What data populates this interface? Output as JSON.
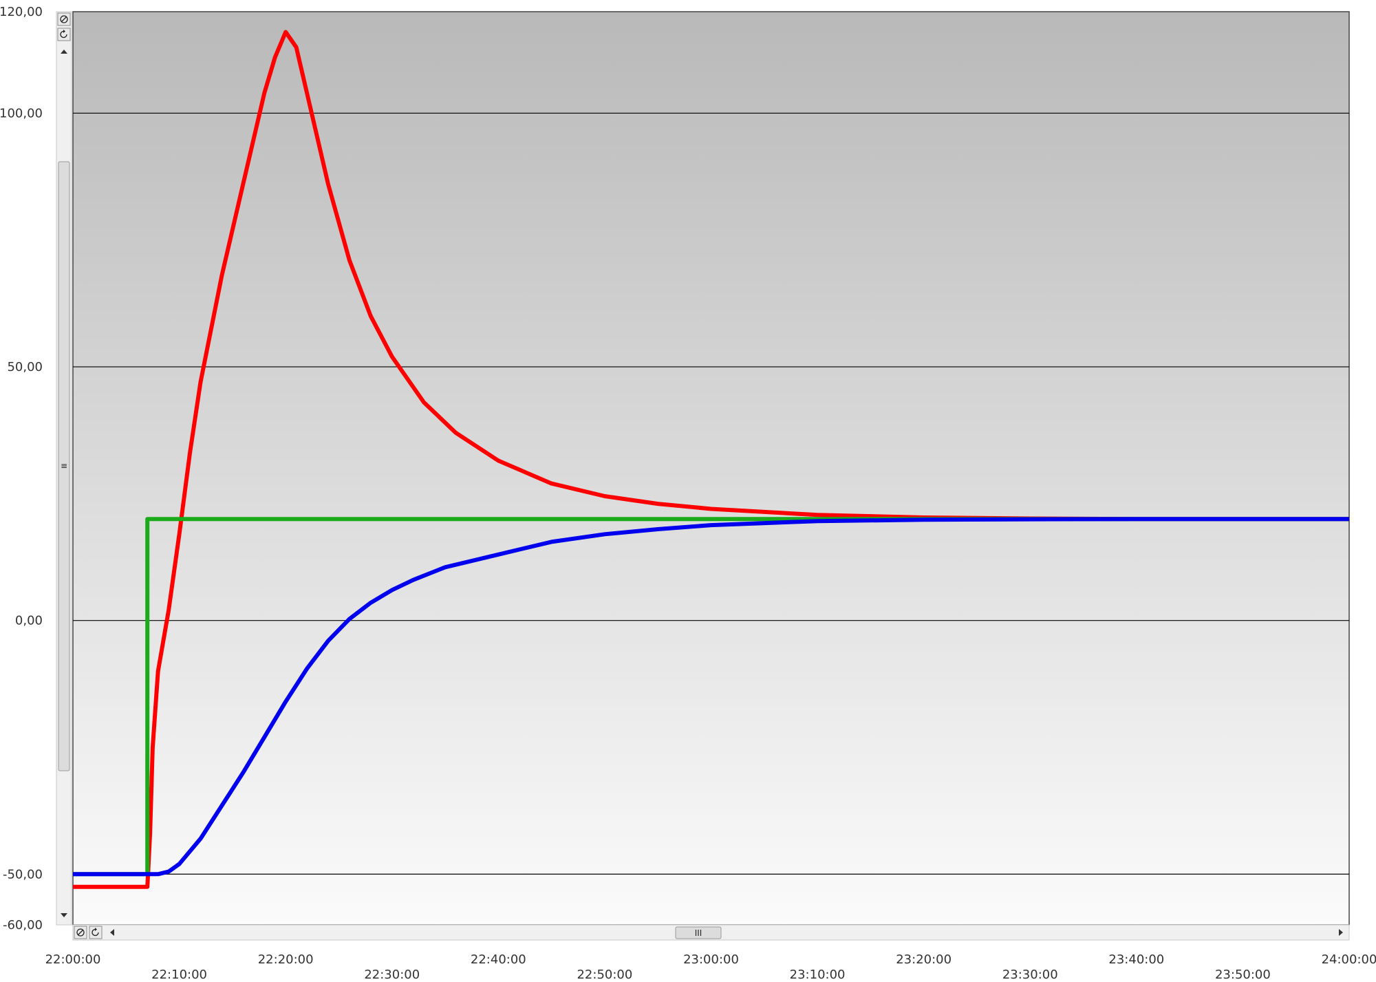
{
  "colors": {
    "plot_top": "#b9b9b9",
    "plot_bottom": "#fbfbfb",
    "gridline": "#000000",
    "series_red": "#ff0000",
    "series_green": "#1aaa1a",
    "series_blue": "#0000ee",
    "scroll_track": "#f0f0f0",
    "scroll_thumb": "#dcdcdc"
  },
  "controls": {
    "reset_zoom_icon": "zoom-reset-icon",
    "refresh_icon": "refresh-icon",
    "scroll_up_icon": "arrow-up-icon",
    "scroll_down_icon": "arrow-down-icon",
    "scroll_left_icon": "arrow-left-icon",
    "scroll_right_icon": "arrow-right-icon",
    "thumb_grip_glyph": "III",
    "v_thumb_grip_glyph": "≡"
  },
  "chart_data": {
    "type": "line",
    "title": "",
    "xlabel": "",
    "ylabel": "",
    "ylim": [
      -60,
      120
    ],
    "xlim": [
      "22:00:00",
      "24:00:00"
    ],
    "y_ticks": [
      "120,00",
      "100,00",
      "50,00",
      "0,00",
      "-50,00",
      "-60,00"
    ],
    "y_tick_values": [
      120,
      100,
      50,
      0,
      -50,
      -60
    ],
    "x_tick_labels": [
      "22:00:00",
      "22:10:00",
      "22:20:00",
      "22:30:00",
      "22:40:00",
      "22:50:00",
      "23:00:00",
      "23:10:00",
      "23:20:00",
      "23:30:00",
      "23:40:00",
      "23:50:00",
      "24:00:00"
    ],
    "x_tick_values": [
      "22:00:00",
      "22:10:00",
      "22:20:00",
      "22:30:00",
      "22:40:00",
      "22:50:00",
      "23:00:00",
      "23:10:00",
      "23:20:00",
      "23:30:00",
      "23:40:00",
      "23:50:00",
      "24:00:00"
    ],
    "gridlines_y": [
      100,
      50,
      0,
      -50
    ],
    "grid": true,
    "legend": "none",
    "series": [
      {
        "color": "#ff0000",
        "x": [
          "22:00:00",
          "22:07:00",
          "22:07:15",
          "22:07:30",
          "22:08:00",
          "22:09:00",
          "22:10:00",
          "22:11:00",
          "22:12:00",
          "22:14:00",
          "22:16:00",
          "22:18:00",
          "22:19:00",
          "22:20:00",
          "22:21:00",
          "22:22:00",
          "22:24:00",
          "22:26:00",
          "22:28:00",
          "22:30:00",
          "22:33:00",
          "22:36:00",
          "22:40:00",
          "22:45:00",
          "22:50:00",
          "22:55:00",
          "23:00:00",
          "23:10:00",
          "23:20:00",
          "23:30:00",
          "23:40:00",
          "23:50:00",
          "24:00:00"
        ],
        "y": [
          -52.5,
          -52.5,
          -42,
          -25,
          -10,
          2,
          17,
          33,
          47,
          68,
          86,
          104,
          111,
          116,
          113,
          104,
          86,
          71,
          60,
          52,
          43,
          37,
          31.5,
          27,
          24.5,
          23,
          22,
          20.8,
          20.3,
          20.1,
          20,
          20,
          20
        ]
      },
      {
        "color": "#1aaa1a",
        "x": [
          "22:00:00",
          "22:07:00",
          "22:07:00",
          "24:00:00"
        ],
        "y": [
          -50,
          -50,
          20,
          20
        ]
      },
      {
        "color": "#0000ee",
        "x": [
          "22:00:00",
          "22:08:00",
          "22:09:00",
          "22:10:00",
          "22:12:00",
          "22:14:00",
          "22:16:00",
          "22:18:00",
          "22:20:00",
          "22:22:00",
          "22:24:00",
          "22:26:00",
          "22:28:00",
          "22:30:00",
          "22:32:00",
          "22:35:00",
          "22:40:00",
          "22:45:00",
          "22:50:00",
          "22:55:00",
          "23:00:00",
          "23:10:00",
          "23:20:00",
          "23:30:00",
          "23:40:00",
          "24:00:00"
        ],
        "y": [
          -50,
          -50,
          -49.5,
          -48,
          -43,
          -36.5,
          -30,
          -23,
          -16,
          -9.5,
          -4,
          0.3,
          3.5,
          6,
          8,
          10.5,
          13,
          15.5,
          17,
          18,
          18.8,
          19.6,
          19.85,
          19.95,
          20,
          20
        ]
      }
    ]
  }
}
